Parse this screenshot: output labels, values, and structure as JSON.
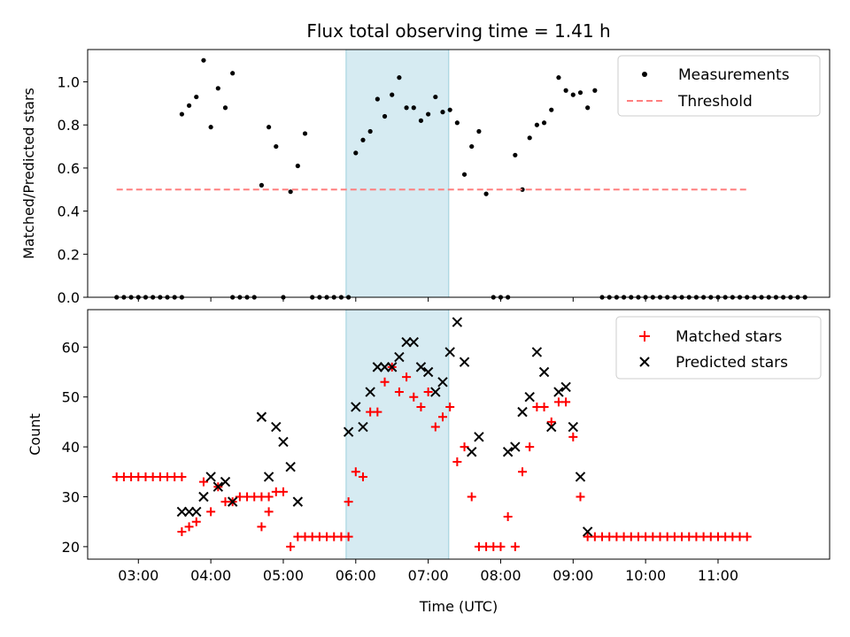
{
  "figure": {
    "title": "Flux total observing time = 1.41 h",
    "xlabel": "Time (UTC)",
    "x_tick_labels": [
      "03:00",
      "04:00",
      "05:00",
      "06:00",
      "07:00",
      "08:00",
      "09:00",
      "10:00",
      "11:00"
    ],
    "shaded_interval": {
      "start": "05:52",
      "end": "07:17",
      "color": "#add8e6"
    }
  },
  "chart_data": [
    {
      "type": "scatter",
      "ylabel": "Matched/Predicted stars",
      "ylim": [
        0,
        1.15
      ],
      "yticks": [
        0.0,
        0.2,
        0.4,
        0.6,
        0.8,
        1.0
      ],
      "legend_position": "top-right",
      "series": [
        {
          "name": "Measurements",
          "marker": "dot",
          "color": "#000000",
          "points": [
            [
              "02:42",
              0
            ],
            [
              "02:48",
              0
            ],
            [
              "02:54",
              0
            ],
            [
              "03:00",
              0
            ],
            [
              "03:06",
              0
            ],
            [
              "03:12",
              0
            ],
            [
              "03:18",
              0
            ],
            [
              "03:24",
              0
            ],
            [
              "03:30",
              0
            ],
            [
              "03:36",
              0
            ],
            [
              "03:36",
              0.85
            ],
            [
              "03:42",
              0.89
            ],
            [
              "03:48",
              0.93
            ],
            [
              "03:54",
              1.1
            ],
            [
              "04:00",
              0.79
            ],
            [
              "04:06",
              0.97
            ],
            [
              "04:12",
              0.88
            ],
            [
              "04:18",
              1.04
            ],
            [
              "04:18",
              0
            ],
            [
              "04:24",
              0
            ],
            [
              "04:30",
              0
            ],
            [
              "04:36",
              0
            ],
            [
              "04:42",
              0.52
            ],
            [
              "04:48",
              0.79
            ],
            [
              "04:54",
              0.7
            ],
            [
              "05:00",
              0
            ],
            [
              "05:06",
              0.49
            ],
            [
              "05:12",
              0.61
            ],
            [
              "05:18",
              0.76
            ],
            [
              "05:24",
              0
            ],
            [
              "05:30",
              0
            ],
            [
              "05:36",
              0
            ],
            [
              "05:42",
              0
            ],
            [
              "05:48",
              0
            ],
            [
              "05:54",
              0
            ],
            [
              "06:00",
              0.67
            ],
            [
              "06:06",
              0.73
            ],
            [
              "06:12",
              0.77
            ],
            [
              "06:18",
              0.92
            ],
            [
              "06:24",
              0.84
            ],
            [
              "06:30",
              0.94
            ],
            [
              "06:36",
              1.02
            ],
            [
              "06:42",
              0.88
            ],
            [
              "06:48",
              0.88
            ],
            [
              "06:54",
              0.82
            ],
            [
              "07:00",
              0.85
            ],
            [
              "07:06",
              0.93
            ],
            [
              "07:12",
              0.86
            ],
            [
              "07:18",
              0.87
            ],
            [
              "07:24",
              0.81
            ],
            [
              "07:30",
              0.57
            ],
            [
              "07:36",
              0.7
            ],
            [
              "07:42",
              0.77
            ],
            [
              "07:48",
              0.48
            ],
            [
              "07:54",
              0
            ],
            [
              "08:00",
              0
            ],
            [
              "08:06",
              0
            ],
            [
              "08:12",
              0.66
            ],
            [
              "08:18",
              0.5
            ],
            [
              "08:24",
              0.74
            ],
            [
              "08:30",
              0.8
            ],
            [
              "08:36",
              0.81
            ],
            [
              "08:42",
              0.87
            ],
            [
              "08:48",
              1.02
            ],
            [
              "08:54",
              0.96
            ],
            [
              "09:00",
              0.94
            ],
            [
              "09:06",
              0.95
            ],
            [
              "09:12",
              0.88
            ],
            [
              "09:18",
              0.96
            ],
            [
              "09:24",
              0
            ],
            [
              "09:30",
              0
            ],
            [
              "09:36",
              0
            ],
            [
              "09:42",
              0
            ],
            [
              "09:48",
              0
            ],
            [
              "09:54",
              0
            ],
            [
              "10:00",
              0
            ],
            [
              "10:06",
              0
            ],
            [
              "10:12",
              0
            ],
            [
              "10:18",
              0
            ],
            [
              "10:24",
              0
            ],
            [
              "10:30",
              0
            ],
            [
              "10:36",
              0
            ],
            [
              "10:42",
              0
            ],
            [
              "10:48",
              0
            ],
            [
              "10:54",
              0
            ],
            [
              "11:00",
              0
            ],
            [
              "11:06",
              0
            ],
            [
              "11:12",
              0
            ],
            [
              "11:18",
              0
            ],
            [
              "11:24",
              0
            ],
            [
              "11:30",
              0
            ],
            [
              "11:36",
              0
            ],
            [
              "11:42",
              0
            ],
            [
              "11:48",
              0
            ],
            [
              "11:54",
              0
            ],
            [
              "12:00",
              0
            ],
            [
              "12:06",
              0
            ],
            [
              "12:12",
              0
            ]
          ]
        },
        {
          "name": "Threshold",
          "marker": "dashed-line",
          "color": "#ff7f7f",
          "points": [
            [
              "02:42",
              0.5
            ],
            [
              "11:24",
              0.5
            ]
          ]
        }
      ]
    },
    {
      "type": "scatter",
      "ylabel": "Count",
      "ylim": [
        17.5,
        67.5
      ],
      "yticks": [
        20,
        30,
        40,
        50,
        60
      ],
      "legend_position": "top-right",
      "series": [
        {
          "name": "Matched stars",
          "marker": "plus",
          "color": "#ff0000",
          "points": [
            [
              "02:42",
              34
            ],
            [
              "02:48",
              34
            ],
            [
              "02:54",
              34
            ],
            [
              "03:00",
              34
            ],
            [
              "03:06",
              34
            ],
            [
              "03:12",
              34
            ],
            [
              "03:18",
              34
            ],
            [
              "03:24",
              34
            ],
            [
              "03:30",
              34
            ],
            [
              "03:36",
              34
            ],
            [
              "03:36",
              23
            ],
            [
              "03:42",
              24
            ],
            [
              "03:48",
              25
            ],
            [
              "03:54",
              33
            ],
            [
              "04:00",
              27
            ],
            [
              "04:06",
              32
            ],
            [
              "04:12",
              29
            ],
            [
              "04:18",
              29
            ],
            [
              "04:24",
              30
            ],
            [
              "04:30",
              30
            ],
            [
              "04:36",
              30
            ],
            [
              "04:42",
              30
            ],
            [
              "04:48",
              30
            ],
            [
              "04:42",
              24
            ],
            [
              "04:48",
              27
            ],
            [
              "04:54",
              31
            ],
            [
              "05:00",
              31
            ],
            [
              "05:06",
              20
            ],
            [
              "05:12",
              22
            ],
            [
              "05:18",
              22
            ],
            [
              "05:24",
              22
            ],
            [
              "05:30",
              22
            ],
            [
              "05:36",
              22
            ],
            [
              "05:42",
              22
            ],
            [
              "05:48",
              22
            ],
            [
              "05:54",
              22
            ],
            [
              "05:54",
              29
            ],
            [
              "06:00",
              35
            ],
            [
              "06:06",
              34
            ],
            [
              "06:12",
              47
            ],
            [
              "06:18",
              47
            ],
            [
              "06:24",
              53
            ],
            [
              "06:30",
              56
            ],
            [
              "06:36",
              51
            ],
            [
              "06:42",
              54
            ],
            [
              "06:48",
              50
            ],
            [
              "06:54",
              48
            ],
            [
              "07:00",
              51
            ],
            [
              "07:06",
              44
            ],
            [
              "07:12",
              46
            ],
            [
              "07:18",
              48
            ],
            [
              "07:24",
              37
            ],
            [
              "07:30",
              40
            ],
            [
              "07:36",
              30
            ],
            [
              "07:42",
              20
            ],
            [
              "07:48",
              20
            ],
            [
              "07:54",
              20
            ],
            [
              "08:00",
              20
            ],
            [
              "08:06",
              26
            ],
            [
              "08:12",
              20
            ],
            [
              "08:18",
              35
            ],
            [
              "08:24",
              40
            ],
            [
              "08:30",
              48
            ],
            [
              "08:36",
              48
            ],
            [
              "08:42",
              45
            ],
            [
              "08:48",
              49
            ],
            [
              "08:54",
              49
            ],
            [
              "09:00",
              42
            ],
            [
              "09:06",
              30
            ],
            [
              "09:12",
              22
            ],
            [
              "09:18",
              22
            ],
            [
              "09:24",
              22
            ],
            [
              "09:30",
              22
            ],
            [
              "09:36",
              22
            ],
            [
              "09:42",
              22
            ],
            [
              "09:48",
              22
            ],
            [
              "09:54",
              22
            ],
            [
              "10:00",
              22
            ],
            [
              "10:06",
              22
            ],
            [
              "10:12",
              22
            ],
            [
              "10:18",
              22
            ],
            [
              "10:24",
              22
            ],
            [
              "10:30",
              22
            ],
            [
              "10:36",
              22
            ],
            [
              "10:42",
              22
            ],
            [
              "10:48",
              22
            ],
            [
              "10:54",
              22
            ],
            [
              "11:00",
              22
            ],
            [
              "11:06",
              22
            ],
            [
              "11:12",
              22
            ],
            [
              "11:18",
              22
            ],
            [
              "11:24",
              22
            ]
          ]
        },
        {
          "name": "Predicted stars",
          "marker": "x",
          "color": "#000000",
          "points": [
            [
              "03:36",
              27
            ],
            [
              "03:42",
              27
            ],
            [
              "03:48",
              27
            ],
            [
              "03:54",
              30
            ],
            [
              "04:00",
              34
            ],
            [
              "04:06",
              32
            ],
            [
              "04:12",
              33
            ],
            [
              "04:18",
              29
            ],
            [
              "04:42",
              46
            ],
            [
              "04:48",
              34
            ],
            [
              "04:54",
              44
            ],
            [
              "05:00",
              41
            ],
            [
              "05:06",
              36
            ],
            [
              "05:12",
              29
            ],
            [
              "05:54",
              43
            ],
            [
              "06:00",
              48
            ],
            [
              "06:06",
              44
            ],
            [
              "06:12",
              51
            ],
            [
              "06:18",
              56
            ],
            [
              "06:24",
              56
            ],
            [
              "06:30",
              56
            ],
            [
              "06:36",
              58
            ],
            [
              "06:42",
              61
            ],
            [
              "06:48",
              61
            ],
            [
              "06:54",
              56
            ],
            [
              "07:00",
              55
            ],
            [
              "07:06",
              51
            ],
            [
              "07:12",
              53
            ],
            [
              "07:18",
              59
            ],
            [
              "07:24",
              65
            ],
            [
              "07:30",
              57
            ],
            [
              "07:36",
              39
            ],
            [
              "07:42",
              42
            ],
            [
              "08:06",
              39
            ],
            [
              "08:12",
              40
            ],
            [
              "08:18",
              47
            ],
            [
              "08:24",
              50
            ],
            [
              "08:30",
              59
            ],
            [
              "08:36",
              55
            ],
            [
              "08:42",
              44
            ],
            [
              "08:48",
              51
            ],
            [
              "08:54",
              52
            ],
            [
              "09:00",
              44
            ],
            [
              "09:06",
              34
            ],
            [
              "09:12",
              23
            ]
          ]
        }
      ]
    }
  ]
}
